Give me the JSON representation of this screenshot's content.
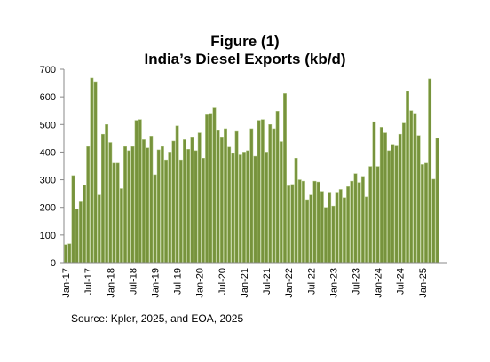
{
  "chart_data": {
    "type": "bar",
    "title": "Figure (1)",
    "subtitle": "India’s Diesel Exports (kb/d)",
    "source": "Source: Kpler, 2025, and EOA, 2025",
    "color": "#77933c",
    "categories": [
      "Jan-17",
      null,
      null,
      null,
      null,
      null,
      "Jul-17",
      null,
      null,
      null,
      null,
      null,
      "Jan-18",
      null,
      null,
      null,
      null,
      null,
      "Jul-18",
      null,
      null,
      null,
      null,
      null,
      "Jan-19",
      null,
      null,
      null,
      null,
      null,
      "Jul-19",
      null,
      null,
      null,
      null,
      null,
      "Jan-20",
      null,
      null,
      null,
      null,
      null,
      "Jul-20",
      null,
      null,
      null,
      null,
      null,
      "Jan-21",
      null,
      null,
      null,
      null,
      null,
      "Jul-21",
      null,
      null,
      null,
      null,
      null,
      "Jan-22",
      null,
      null,
      null,
      null,
      null,
      "Jul-22",
      null,
      null,
      null,
      null,
      null,
      "Jan-23",
      null,
      null,
      null,
      null,
      null,
      "Jul-23",
      null,
      null,
      null,
      null,
      null,
      "Jan-24",
      null,
      null,
      null,
      null,
      null,
      "Jul-24",
      null,
      null,
      null,
      null,
      null,
      "Jan-25",
      null,
      null,
      null,
      null
    ],
    "values": [
      65,
      68,
      315,
      195,
      220,
      280,
      420,
      668,
      655,
      245,
      465,
      500,
      435,
      360,
      360,
      268,
      420,
      405,
      420,
      515,
      518,
      445,
      415,
      458,
      318,
      408,
      420,
      372,
      400,
      440,
      495,
      372,
      445,
      410,
      455,
      405,
      470,
      378,
      535,
      540,
      560,
      478,
      455,
      485,
      418,
      395,
      475,
      390,
      400,
      405,
      485,
      385,
      515,
      518,
      400,
      500,
      485,
      548,
      438,
      612,
      278,
      283,
      378,
      300,
      295,
      228,
      245,
      295,
      292,
      258,
      200,
      255,
      205,
      255,
      265,
      235,
      275,
      295,
      322,
      290,
      312,
      238,
      348,
      510,
      348,
      490,
      470,
      405,
      428,
      425,
      465,
      505,
      620,
      550,
      540,
      460,
      355,
      360,
      665,
      302,
      450
    ],
    "ylim": [
      0,
      700
    ],
    "yticks": [
      0,
      100,
      200,
      300,
      400,
      500,
      600,
      700
    ]
  }
}
